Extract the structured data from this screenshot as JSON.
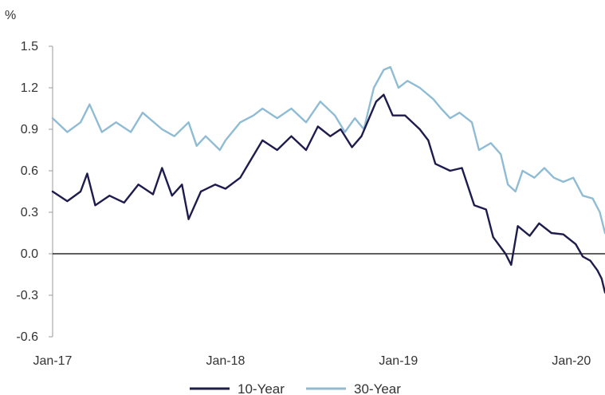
{
  "chart_data": {
    "type": "line",
    "unit_label": "%",
    "ylim": [
      -0.6,
      1.5
    ],
    "yticks": [
      "1.5",
      "1.2",
      "0.9",
      "0.6",
      "0.3",
      "0.0",
      "-0.3",
      "-0.6"
    ],
    "ytick_values": [
      1.5,
      1.2,
      0.9,
      0.6,
      0.3,
      0.0,
      -0.3,
      -0.6
    ],
    "xticks": [
      "Jan-17",
      "Jan-18",
      "Jan-19",
      "Jan-20"
    ],
    "xtick_dates": [
      "2017-01-01",
      "2018-01-01",
      "2019-01-01",
      "2020-01-01"
    ],
    "xlim": [
      "2017-01-01",
      "2020-03-12"
    ],
    "grid": false,
    "zero_line": true,
    "legend_position": "bottom",
    "series": [
      {
        "name": "10-Year",
        "color": "#1e1b4d",
        "points": [
          [
            "2017-01-01",
            0.45
          ],
          [
            "2017-02-01",
            0.38
          ],
          [
            "2017-03-01",
            0.45
          ],
          [
            "2017-03-15",
            0.58
          ],
          [
            "2017-04-01",
            0.35
          ],
          [
            "2017-05-01",
            0.42
          ],
          [
            "2017-06-01",
            0.37
          ],
          [
            "2017-07-01",
            0.5
          ],
          [
            "2017-08-01",
            0.43
          ],
          [
            "2017-08-20",
            0.62
          ],
          [
            "2017-09-10",
            0.42
          ],
          [
            "2017-10-01",
            0.5
          ],
          [
            "2017-10-15",
            0.25
          ],
          [
            "2017-11-10",
            0.45
          ],
          [
            "2017-12-10",
            0.5
          ],
          [
            "2018-01-01",
            0.47
          ],
          [
            "2018-02-01",
            0.55
          ],
          [
            "2018-02-20",
            0.66
          ],
          [
            "2018-03-20",
            0.82
          ],
          [
            "2018-04-20",
            0.75
          ],
          [
            "2018-05-20",
            0.85
          ],
          [
            "2018-06-20",
            0.75
          ],
          [
            "2018-07-15",
            0.92
          ],
          [
            "2018-08-10",
            0.85
          ],
          [
            "2018-09-01",
            0.9
          ],
          [
            "2018-09-25",
            0.77
          ],
          [
            "2018-10-15",
            0.85
          ],
          [
            "2018-11-15",
            1.1
          ],
          [
            "2018-12-01",
            1.15
          ],
          [
            "2018-12-20",
            1.0
          ],
          [
            "2019-01-15",
            1.0
          ],
          [
            "2019-02-15",
            0.9
          ],
          [
            "2019-03-05",
            0.82
          ],
          [
            "2019-03-20",
            0.65
          ],
          [
            "2019-04-20",
            0.6
          ],
          [
            "2019-05-15",
            0.62
          ],
          [
            "2019-06-10",
            0.35
          ],
          [
            "2019-07-05",
            0.32
          ],
          [
            "2019-07-20",
            0.12
          ],
          [
            "2019-08-15",
            0.0
          ],
          [
            "2019-08-27",
            -0.08
          ],
          [
            "2019-09-10",
            0.2
          ],
          [
            "2019-10-05",
            0.13
          ],
          [
            "2019-10-25",
            0.22
          ],
          [
            "2019-11-20",
            0.15
          ],
          [
            "2019-12-15",
            0.14
          ],
          [
            "2020-01-10",
            0.07
          ],
          [
            "2020-01-25",
            -0.02
          ],
          [
            "2020-02-10",
            -0.05
          ],
          [
            "2020-02-25",
            -0.12
          ],
          [
            "2020-03-05",
            -0.18
          ],
          [
            "2020-03-12",
            -0.28
          ]
        ]
      },
      {
        "name": "30-Year",
        "color": "#8fbcd4",
        "points": [
          [
            "2017-01-01",
            0.98
          ],
          [
            "2017-02-01",
            0.88
          ],
          [
            "2017-03-01",
            0.95
          ],
          [
            "2017-03-20",
            1.08
          ],
          [
            "2017-04-15",
            0.88
          ],
          [
            "2017-05-15",
            0.95
          ],
          [
            "2017-06-15",
            0.88
          ],
          [
            "2017-07-10",
            1.02
          ],
          [
            "2017-08-20",
            0.9
          ],
          [
            "2017-09-15",
            0.85
          ],
          [
            "2017-10-15",
            0.95
          ],
          [
            "2017-11-01",
            0.78
          ],
          [
            "2017-11-20",
            0.85
          ],
          [
            "2017-12-20",
            0.75
          ],
          [
            "2018-01-01",
            0.82
          ],
          [
            "2018-02-01",
            0.95
          ],
          [
            "2018-03-01",
            1.0
          ],
          [
            "2018-03-20",
            1.05
          ],
          [
            "2018-04-20",
            0.98
          ],
          [
            "2018-05-20",
            1.05
          ],
          [
            "2018-06-20",
            0.95
          ],
          [
            "2018-07-20",
            1.1
          ],
          [
            "2018-08-20",
            1.0
          ],
          [
            "2018-09-10",
            0.88
          ],
          [
            "2018-10-01",
            0.98
          ],
          [
            "2018-10-20",
            0.9
          ],
          [
            "2018-11-10",
            1.2
          ],
          [
            "2018-12-01",
            1.33
          ],
          [
            "2018-12-15",
            1.35
          ],
          [
            "2019-01-01",
            1.2
          ],
          [
            "2019-01-20",
            1.25
          ],
          [
            "2019-02-15",
            1.2
          ],
          [
            "2019-03-15",
            1.12
          ],
          [
            "2019-04-01",
            1.05
          ],
          [
            "2019-04-20",
            0.98
          ],
          [
            "2019-05-10",
            1.02
          ],
          [
            "2019-06-05",
            0.95
          ],
          [
            "2019-06-20",
            0.75
          ],
          [
            "2019-07-15",
            0.8
          ],
          [
            "2019-08-05",
            0.72
          ],
          [
            "2019-08-20",
            0.5
          ],
          [
            "2019-09-05",
            0.45
          ],
          [
            "2019-09-20",
            0.6
          ],
          [
            "2019-10-15",
            0.55
          ],
          [
            "2019-11-05",
            0.62
          ],
          [
            "2019-11-25",
            0.55
          ],
          [
            "2019-12-15",
            0.52
          ],
          [
            "2020-01-05",
            0.55
          ],
          [
            "2020-01-25",
            0.42
          ],
          [
            "2020-02-15",
            0.4
          ],
          [
            "2020-03-01",
            0.3
          ],
          [
            "2020-03-12",
            0.15
          ]
        ]
      }
    ]
  }
}
